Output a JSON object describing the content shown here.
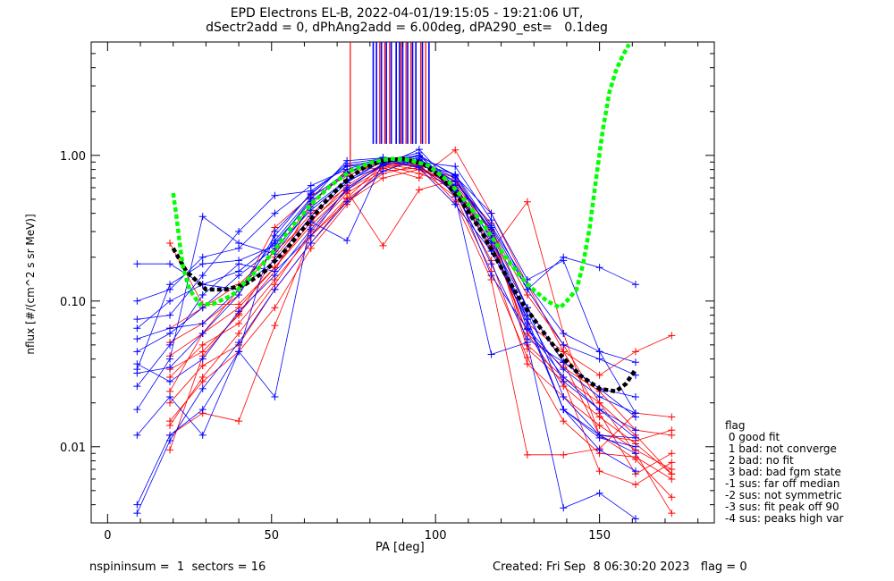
{
  "title_line1": "EPD Electrons EL-B, 2022-04-01/19:15:05 - 19:21:06 UT,",
  "title_line2": "dSectr2add = 0, dPhAng2add = 6.00deg, dPA290_est=   0.1deg",
  "footer_left": "nspininsum =  1  sectors = 16",
  "footer_right": "Created: Fri Sep  8 06:30:20 2023   flag = 0",
  "legend": {
    "title": "flag",
    "items": [
      " 0 good fit",
      " 1 bad: not converge",
      " 2 bad: no fit",
      " 3 bad: bad fgm state",
      "-1 sus: far off median",
      "-2 sus: not symmetric",
      "-3 sus: fit peak off 90",
      "-4 sus: peaks high var"
    ]
  },
  "chart_data": {
    "type": "line",
    "xlabel": "PA [deg]",
    "ylabel": "nflux [#/(cm^2 s sr MeV)]",
    "xlim": [
      -5,
      185
    ],
    "ylim": [
      0.003,
      6.0
    ],
    "yscale": "log",
    "xticks": [
      0,
      50,
      100,
      150
    ],
    "yticks": [
      0.01,
      0.1,
      1.0
    ],
    "ytick_labels": [
      "0.01",
      "0.10",
      "1.00"
    ],
    "colors": {
      "red": "#ff0000",
      "blue": "#0000ff",
      "green_fit": "#00ff00",
      "black_fit": "#000000",
      "background": "#ffffff"
    },
    "median_curves": [
      {
        "color": "black",
        "x": [
          20,
          24,
          30,
          36,
          42,
          48,
          54,
          60,
          66,
          72,
          78,
          84,
          90,
          96,
          102,
          108,
          114,
          120,
          126,
          132,
          138,
          144,
          150,
          155,
          158,
          161
        ],
        "y": [
          0.23,
          0.16,
          0.12,
          0.12,
          0.13,
          0.16,
          0.22,
          0.32,
          0.47,
          0.65,
          0.82,
          0.92,
          0.95,
          0.88,
          0.7,
          0.48,
          0.3,
          0.17,
          0.1,
          0.065,
          0.043,
          0.031,
          0.025,
          0.024,
          0.027,
          0.034
        ]
      },
      {
        "color": "green",
        "x": [
          20,
          21,
          22,
          23,
          25,
          28,
          32,
          38,
          44,
          50,
          56,
          62,
          68,
          74,
          80,
          86,
          92,
          98,
          104,
          110,
          116,
          122,
          128,
          134,
          138,
          140,
          143,
          145,
          147,
          149,
          151,
          153,
          155,
          157,
          159
        ],
        "y": [
          0.55,
          0.38,
          0.25,
          0.17,
          0.12,
          0.095,
          0.095,
          0.11,
          0.15,
          0.21,
          0.32,
          0.46,
          0.62,
          0.78,
          0.89,
          0.95,
          0.93,
          0.85,
          0.66,
          0.46,
          0.3,
          0.19,
          0.13,
          0.1,
          0.09,
          0.1,
          0.12,
          0.18,
          0.32,
          0.7,
          1.5,
          2.7,
          3.8,
          4.8,
          5.8
        ]
      }
    ],
    "red_spikes_x": [
      74,
      83,
      84.5,
      86,
      88,
      89.5,
      91,
      92.5,
      95.5,
      97
    ],
    "blue_spikes_x": [
      81,
      82,
      83.5,
      85,
      86.5,
      88,
      89,
      90,
      91.5,
      93,
      94,
      96,
      98
    ],
    "spike_bottom_y": 1.2,
    "series": [
      {
        "color": "red",
        "x": [
          19,
          29,
          40,
          51,
          62,
          73,
          84,
          95,
          106,
          117,
          128,
          139,
          150,
          161,
          172
        ],
        "y": [
          0.25,
          0.095,
          0.095,
          0.17,
          0.33,
          0.57,
          0.24,
          0.58,
          0.68,
          0.3,
          0.047,
          0.028,
          0.0068,
          0.0055,
          0.0078
        ]
      },
      {
        "color": "red",
        "x": [
          19,
          29,
          40,
          51,
          62,
          73,
          84,
          95,
          106,
          117,
          128,
          139,
          150,
          161,
          172
        ],
        "y": [
          0.024,
          0.06,
          0.12,
          0.22,
          0.46,
          0.8,
          0.82,
          0.7,
          1.09,
          0.4,
          0.13,
          0.045,
          0.017,
          0.0065,
          0.009
        ]
      },
      {
        "color": "red",
        "x": [
          19,
          29,
          40,
          51,
          62,
          73,
          84,
          95,
          106,
          117,
          128,
          139,
          150,
          161,
          172
        ],
        "y": [
          0.012,
          0.017,
          0.015,
          0.068,
          0.28,
          0.51,
          0.87,
          0.8,
          0.52,
          0.16,
          0.041,
          0.015,
          0.009,
          0.0085,
          0.006
        ]
      },
      {
        "color": "red",
        "x": [
          19,
          29,
          40,
          51,
          62,
          73,
          84,
          95,
          106,
          117,
          128,
          139,
          150,
          161,
          172
        ],
        "y": [
          0.0095,
          0.042,
          0.082,
          0.16,
          0.48,
          0.76,
          0.9,
          0.83,
          0.62,
          0.22,
          0.48,
          0.06,
          0.012,
          0.0082,
          0.0045
        ]
      },
      {
        "color": "red",
        "x": [
          19,
          29,
          40,
          51,
          62,
          73,
          84,
          95,
          106,
          117,
          128,
          139,
          150,
          161,
          172
        ],
        "y": [
          0.052,
          0.07,
          0.11,
          0.32,
          0.53,
          0.72,
          0.92,
          0.85,
          0.55,
          0.19,
          0.037,
          0.022,
          0.014,
          0.0095,
          0.007
        ]
      },
      {
        "color": "red",
        "x": [
          19,
          29,
          40,
          51,
          62,
          73,
          84,
          95,
          106,
          117,
          128,
          139,
          150,
          161,
          172
        ],
        "y": [
          0.015,
          0.028,
          0.045,
          0.09,
          0.23,
          0.46,
          0.84,
          0.88,
          0.48,
          0.14,
          0.0088,
          0.0088,
          0.0097,
          0.017,
          0.016
        ]
      },
      {
        "color": "red",
        "x": [
          19,
          29,
          40,
          51,
          62,
          73,
          84,
          95,
          106,
          117,
          128,
          139,
          150,
          161,
          172
        ],
        "y": [
          0.034,
          0.045,
          0.08,
          0.2,
          0.4,
          0.6,
          0.85,
          0.75,
          0.62,
          0.27,
          0.06,
          0.035,
          0.024,
          0.013,
          0.012
        ]
      },
      {
        "color": "red",
        "x": [
          19,
          29,
          40,
          51,
          62,
          73,
          84,
          95,
          106,
          117,
          128,
          139,
          150,
          161,
          172
        ],
        "y": [
          0.065,
          0.09,
          0.13,
          0.22,
          0.36,
          0.58,
          0.81,
          0.9,
          0.66,
          0.34,
          0.05,
          0.03,
          0.02,
          0.012,
          0.0065
        ]
      },
      {
        "color": "red",
        "x": [
          19,
          29,
          40,
          51,
          62,
          73,
          84,
          95,
          106,
          117,
          128,
          139,
          150,
          161,
          172
        ],
        "y": [
          0.014,
          0.03,
          0.06,
          0.13,
          0.3,
          0.55,
          0.78,
          0.82,
          0.58,
          0.24,
          0.07,
          0.045,
          0.031,
          0.045,
          0.058
        ]
      },
      {
        "color": "red",
        "x": [
          19,
          29,
          40,
          51,
          62,
          73,
          84,
          95,
          106,
          117,
          128,
          139,
          150,
          161,
          172
        ],
        "y": [
          0.02,
          0.036,
          0.05,
          0.12,
          0.25,
          0.5,
          0.75,
          0.86,
          0.7,
          0.29,
          0.09,
          0.038,
          0.012,
          0.011,
          0.013
        ]
      },
      {
        "color": "red",
        "x": [
          19,
          29,
          40,
          51,
          62,
          73,
          84,
          95,
          106,
          117,
          128,
          139,
          150,
          161,
          172
        ],
        "y": [
          0.042,
          0.06,
          0.09,
          0.17,
          0.35,
          0.62,
          0.88,
          0.84,
          0.6,
          0.25,
          0.06,
          0.026,
          0.016,
          0.0105,
          0.0065
        ]
      },
      {
        "color": "red",
        "x": [
          19,
          29,
          40,
          51,
          62,
          73,
          84,
          95,
          106,
          117,
          128,
          139,
          150,
          161,
          172
        ],
        "y": [
          0.03,
          0.05,
          0.07,
          0.14,
          0.28,
          0.48,
          0.7,
          0.8,
          0.63,
          0.31,
          0.11,
          0.05,
          0.02,
          0.009,
          0.0035
        ]
      },
      {
        "color": "blue",
        "x": [
          9,
          19,
          29,
          40,
          51,
          62,
          73,
          84,
          95,
          106,
          117,
          128,
          139,
          150,
          161
        ],
        "y": [
          0.004,
          0.012,
          0.018,
          0.045,
          0.3,
          0.54,
          0.88,
          0.95,
          0.84,
          0.56,
          0.28,
          0.075,
          0.018,
          0.0095,
          0.0068
        ]
      },
      {
        "color": "blue",
        "x": [
          9,
          19,
          29,
          40,
          51,
          62,
          73,
          84,
          95,
          106,
          117,
          128,
          139,
          150,
          161
        ],
        "y": [
          0.0035,
          0.011,
          0.025,
          0.052,
          0.12,
          0.25,
          0.48,
          0.78,
          0.94,
          0.66,
          0.31,
          0.09,
          0.022,
          0.012,
          0.009
        ]
      },
      {
        "color": "blue",
        "x": [
          9,
          19,
          29,
          40,
          51,
          62,
          73,
          84,
          95,
          106,
          117,
          128,
          139,
          150,
          161
        ],
        "y": [
          0.034,
          0.13,
          0.18,
          0.19,
          0.24,
          0.5,
          0.92,
          0.96,
          0.9,
          0.84,
          0.36,
          0.12,
          0.2,
          0.17,
          0.13
        ]
      },
      {
        "color": "blue",
        "x": [
          9,
          19,
          29,
          40,
          51,
          62,
          73,
          84,
          95,
          106,
          117,
          128,
          139,
          150,
          161
        ],
        "y": [
          0.018,
          0.04,
          0.38,
          0.25,
          0.21,
          0.44,
          0.68,
          0.91,
          1.0,
          0.72,
          0.4,
          0.14,
          0.19,
          0.045,
          0.017
        ]
      },
      {
        "color": "blue",
        "x": [
          9,
          19,
          29,
          40,
          51,
          62,
          73,
          84,
          95,
          106,
          117,
          128,
          139,
          150,
          161
        ],
        "y": [
          0.026,
          0.05,
          0.11,
          0.18,
          0.16,
          0.28,
          0.6,
          0.86,
          0.92,
          0.7,
          0.26,
          0.09,
          0.038,
          0.025,
          0.022
        ]
      },
      {
        "color": "blue",
        "x": [
          9,
          19,
          29,
          40,
          51,
          62,
          73,
          84,
          95,
          106,
          117,
          128,
          139,
          150,
          161
        ],
        "y": [
          0.012,
          0.022,
          0.012,
          0.045,
          0.022,
          0.35,
          0.26,
          0.91,
          1.04,
          0.52,
          0.043,
          0.052,
          0.0038,
          0.0048,
          0.0032
        ]
      },
      {
        "color": "blue",
        "x": [
          9,
          19,
          29,
          40,
          51,
          62,
          73,
          84,
          95,
          106,
          117,
          128,
          139,
          150,
          161
        ],
        "y": [
          0.065,
          0.1,
          0.13,
          0.16,
          0.25,
          0.48,
          0.75,
          0.96,
          0.88,
          0.74,
          0.32,
          0.12,
          0.05,
          0.04,
          0.031
        ]
      },
      {
        "color": "blue",
        "x": [
          9,
          19,
          29,
          40,
          51,
          62,
          73,
          84,
          95,
          106,
          117,
          128,
          139,
          150,
          161
        ],
        "y": [
          0.1,
          0.12,
          0.2,
          0.23,
          0.4,
          0.62,
          0.8,
          0.97,
          0.92,
          0.57,
          0.23,
          0.08,
          0.028,
          0.018,
          0.013
        ]
      },
      {
        "color": "blue",
        "x": [
          9,
          19,
          29,
          40,
          51,
          62,
          73,
          84,
          95,
          106,
          117,
          128,
          139,
          150,
          161
        ],
        "y": [
          0.075,
          0.08,
          0.15,
          0.3,
          0.53,
          0.57,
          0.84,
          0.89,
          0.96,
          0.58,
          0.18,
          0.055,
          0.038,
          0.025,
          0.016
        ]
      },
      {
        "color": "blue",
        "x": [
          9,
          19,
          29,
          40,
          51,
          62,
          73,
          84,
          95,
          106,
          117,
          128,
          139,
          150,
          161
        ],
        "y": [
          0.18,
          0.18,
          0.13,
          0.12,
          0.19,
          0.38,
          0.65,
          0.92,
          0.99,
          0.73,
          0.29,
          0.065,
          0.034,
          0.022,
          0.017
        ]
      },
      {
        "color": "blue",
        "x": [
          9,
          19,
          29,
          40,
          51,
          62,
          73,
          84,
          95,
          106,
          117,
          128,
          139,
          150,
          161
        ],
        "y": [
          0.045,
          0.06,
          0.09,
          0.15,
          0.23,
          0.42,
          0.67,
          0.85,
          1.1,
          0.6,
          0.15,
          0.064,
          0.03,
          0.018,
          0.0115
        ]
      },
      {
        "color": "blue",
        "x": [
          9,
          19,
          29,
          40,
          51,
          62,
          73,
          84,
          95,
          106,
          117,
          128,
          139,
          150,
          161
        ],
        "y": [
          0.032,
          0.035,
          0.06,
          0.11,
          0.28,
          0.55,
          0.85,
          0.93,
          0.82,
          0.46,
          0.22,
          0.075,
          0.018,
          0.012,
          0.0115
        ]
      },
      {
        "color": "blue",
        "x": [
          9,
          19,
          29,
          40,
          51,
          62,
          73,
          84,
          95,
          106,
          117,
          128,
          139,
          150,
          161
        ],
        "y": [
          0.055,
          0.065,
          0.07,
          0.12,
          0.26,
          0.51,
          0.77,
          0.95,
          0.87,
          0.66,
          0.33,
          0.13,
          0.06,
          0.045,
          0.038
        ]
      },
      {
        "color": "blue",
        "x": [
          9,
          19,
          29,
          40,
          51,
          62,
          73,
          84,
          95,
          106,
          117,
          128,
          139,
          150,
          161
        ],
        "y": [
          0.037,
          0.028,
          0.04,
          0.085,
          0.15,
          0.31,
          0.58,
          0.88,
          0.99,
          0.62,
          0.25,
          0.07,
          0.018,
          0.0115,
          0.01
        ]
      }
    ]
  }
}
